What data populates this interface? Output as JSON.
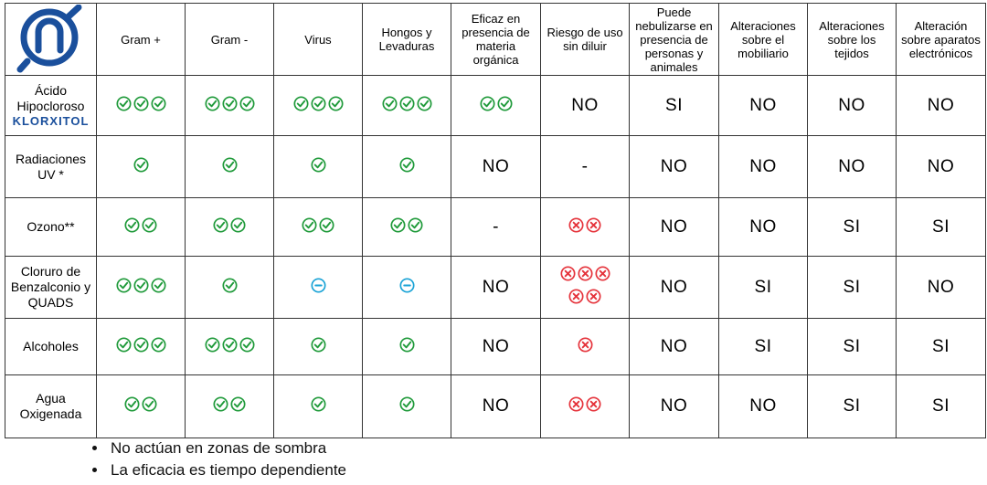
{
  "columns": [
    "Gram +",
    "Gram -",
    "Virus",
    "Hongos y Levaduras",
    "Eficaz en presencia de materia orgánica",
    "Riesgo de uso sin diluir",
    "Puede nebulizarse en presencia de personas y animales",
    "Alteraciones sobre el mobiliario",
    "Alteraciones sobre los tejidos",
    "Alteración sobre aparatos electrónicos"
  ],
  "rows": [
    {
      "label": "Ácido Hipocloroso",
      "brand": "KLORXITOL",
      "cells": [
        {
          "icons": [
            "check",
            "check",
            "check"
          ]
        },
        {
          "icons": [
            "check",
            "check",
            "check"
          ]
        },
        {
          "icons": [
            "check",
            "check",
            "check"
          ]
        },
        {
          "icons": [
            "check",
            "check",
            "check"
          ]
        },
        {
          "icons": [
            "check",
            "check"
          ]
        },
        {
          "text": "NO"
        },
        {
          "text": "SI"
        },
        {
          "text": "NO"
        },
        {
          "text": "NO"
        },
        {
          "text": "NO"
        }
      ]
    },
    {
      "label": "Radiaciones UV *",
      "cells": [
        {
          "icons": [
            "check"
          ]
        },
        {
          "icons": [
            "check"
          ]
        },
        {
          "icons": [
            "check"
          ]
        },
        {
          "icons": [
            "check"
          ]
        },
        {
          "text": "NO"
        },
        {
          "text": "-"
        },
        {
          "text": "NO"
        },
        {
          "text": "NO"
        },
        {
          "text": "NO"
        },
        {
          "text": "NO"
        }
      ]
    },
    {
      "label": "Ozono**",
      "cells": [
        {
          "icons": [
            "check",
            "check"
          ]
        },
        {
          "icons": [
            "check",
            "check"
          ]
        },
        {
          "icons": [
            "check",
            "check"
          ]
        },
        {
          "icons": [
            "check",
            "check"
          ]
        },
        {
          "text": "-"
        },
        {
          "icons": [
            "cross",
            "cross"
          ]
        },
        {
          "text": "NO"
        },
        {
          "text": "NO"
        },
        {
          "text": "SI"
        },
        {
          "text": "SI"
        }
      ]
    },
    {
      "label": "Cloruro de Benzalconio y QUADS",
      "cells": [
        {
          "icons": [
            "check",
            "check",
            "check"
          ]
        },
        {
          "icons": [
            "check"
          ]
        },
        {
          "icons": [
            "minus"
          ]
        },
        {
          "icons": [
            "minus"
          ]
        },
        {
          "text": "NO"
        },
        {
          "icons": [
            "cross",
            "cross",
            "cross",
            "cross",
            "cross"
          ]
        },
        {
          "text": "NO"
        },
        {
          "text": "SI"
        },
        {
          "text": "SI"
        },
        {
          "text": "NO"
        }
      ]
    },
    {
      "label": "Alcoholes",
      "cells": [
        {
          "icons": [
            "check",
            "check",
            "check"
          ]
        },
        {
          "icons": [
            "check",
            "check",
            "check"
          ]
        },
        {
          "icons": [
            "check"
          ]
        },
        {
          "icons": [
            "check"
          ]
        },
        {
          "text": "NO"
        },
        {
          "icons": [
            "cross"
          ]
        },
        {
          "text": "NO"
        },
        {
          "text": "SI"
        },
        {
          "text": "SI"
        },
        {
          "text": "SI"
        }
      ]
    },
    {
      "label": "Agua Oxigenada",
      "cells": [
        {
          "icons": [
            "check",
            "check"
          ]
        },
        {
          "icons": [
            "check",
            "check"
          ]
        },
        {
          "icons": [
            "check"
          ]
        },
        {
          "icons": [
            "check"
          ]
        },
        {
          "text": "NO"
        },
        {
          "icons": [
            "cross",
            "cross"
          ]
        },
        {
          "text": "NO"
        },
        {
          "text": "NO"
        },
        {
          "text": "SI"
        },
        {
          "text": "SI"
        }
      ]
    }
  ],
  "notes": [
    "No actúan en zonas de sombra",
    "La eficacia es tiempo dependiente"
  ],
  "colors": {
    "check": "#1f9a3a",
    "cross": "#e5333b",
    "minus": "#1aa3d6",
    "logo": "#1a4f9c",
    "border": "#333333"
  }
}
